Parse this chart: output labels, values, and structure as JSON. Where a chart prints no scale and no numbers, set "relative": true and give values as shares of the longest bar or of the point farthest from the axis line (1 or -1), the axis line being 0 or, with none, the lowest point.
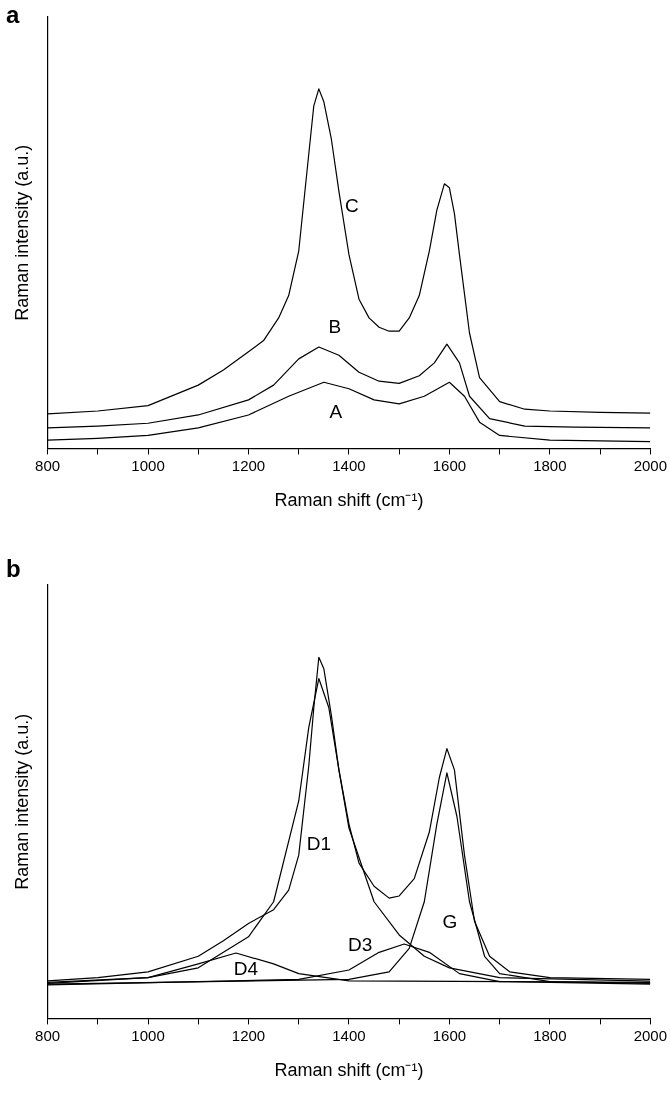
{
  "chart_data": [
    {
      "type": "line",
      "title": "a",
      "xlabel": "Raman shift (cm⁻¹)",
      "ylabel": "Raman intensity (a.u.)",
      "relative": true,
      "xlim": [
        800,
        2000
      ],
      "xticks": [
        800,
        {
          "value": 900,
          "label": null
        },
        1000,
        {
          "value": 1100,
          "label": null
        },
        1200,
        {
          "value": 1300,
          "label": null
        },
        1400,
        {
          "value": 1500,
          "label": null
        },
        1600,
        {
          "value": 1700,
          "label": null
        },
        1800,
        {
          "value": 1900,
          "label": null
        },
        2000
      ],
      "grid": false,
      "legend": false,
      "marker": "none",
      "line_style": "solid",
      "series": [
        {
          "name": "C",
          "color": "#000000",
          "x": [
            800,
            900,
            1000,
            1100,
            1150,
            1200,
            1230,
            1260,
            1280,
            1300,
            1320,
            1330,
            1340,
            1350,
            1365,
            1380,
            1400,
            1420,
            1440,
            1460,
            1480,
            1500,
            1520,
            1540,
            1560,
            1575,
            1590,
            1600,
            1610,
            1620,
            1640,
            1660,
            1700,
            1750,
            1800,
            1900,
            2000
          ],
          "values": [
            0.096,
            0.104,
            0.119,
            0.176,
            0.218,
            0.269,
            0.3,
            0.363,
            0.425,
            0.549,
            0.819,
            0.953,
            1,
            0.964,
            0.86,
            0.715,
            0.539,
            0.415,
            0.363,
            0.337,
            0.326,
            0.326,
            0.363,
            0.425,
            0.549,
            0.663,
            0.736,
            0.725,
            0.653,
            0.539,
            0.321,
            0.197,
            0.13,
            0.109,
            0.104,
            0.1,
            0.098
          ]
        },
        {
          "name": "B",
          "color": "#000000",
          "x": [
            800,
            900,
            1000,
            1100,
            1200,
            1250,
            1300,
            1340,
            1380,
            1420,
            1460,
            1500,
            1540,
            1570,
            1595,
            1620,
            1640,
            1680,
            1750,
            1850,
            2000
          ],
          "values": [
            0.057,
            0.062,
            0.07,
            0.093,
            0.135,
            0.176,
            0.249,
            0.282,
            0.259,
            0.212,
            0.187,
            0.181,
            0.202,
            0.238,
            0.29,
            0.238,
            0.145,
            0.083,
            0.062,
            0.059,
            0.057
          ]
        },
        {
          "name": "A",
          "color": "#000000",
          "x": [
            800,
            900,
            1000,
            1100,
            1200,
            1280,
            1350,
            1400,
            1450,
            1500,
            1550,
            1600,
            1630,
            1660,
            1700,
            1800,
            2000
          ],
          "values": [
            0.023,
            0.028,
            0.036,
            0.057,
            0.093,
            0.145,
            0.184,
            0.166,
            0.135,
            0.124,
            0.145,
            0.184,
            0.145,
            0.073,
            0.036,
            0.023,
            0.019
          ]
        }
      ]
    },
    {
      "type": "line",
      "title": "b",
      "xlabel": "Raman shift (cm⁻¹)",
      "ylabel": "Raman intensity (a.u.)",
      "relative": true,
      "xlim": [
        800,
        2000
      ],
      "xticks": [
        800,
        {
          "value": 900,
          "label": null
        },
        1000,
        {
          "value": 1100,
          "label": null
        },
        1200,
        {
          "value": 1300,
          "label": null
        },
        1400,
        {
          "value": 1500,
          "label": null
        },
        1600,
        {
          "value": 1700,
          "label": null
        },
        1800,
        {
          "value": 1900,
          "label": null
        },
        2000
      ],
      "grid": false,
      "legend": false,
      "marker": "none",
      "line_style": "solid",
      "series": [
        {
          "color": "#000000",
          "x": [
            800,
            900,
            1000,
            1100,
            1150,
            1200,
            1250,
            1280,
            1300,
            1320,
            1330,
            1340,
            1350,
            1365,
            1380,
            1400,
            1420,
            1450,
            1480,
            1500,
            1530,
            1560,
            1580,
            1595,
            1610,
            1630,
            1650,
            1680,
            1720,
            1800,
            2000
          ],
          "values": [
            0.104,
            0.113,
            0.129,
            0.172,
            0.215,
            0.263,
            0.301,
            0.355,
            0.452,
            0.699,
            0.86,
            1,
            0.968,
            0.839,
            0.688,
            0.538,
            0.43,
            0.366,
            0.333,
            0.339,
            0.387,
            0.516,
            0.667,
            0.747,
            0.688,
            0.452,
            0.269,
            0.172,
            0.129,
            0.113,
            0.108
          ]
        },
        {
          "name": "D1",
          "color": "#000000",
          "x": [
            800,
            1000,
            1100,
            1200,
            1250,
            1300,
            1320,
            1340,
            1360,
            1380,
            1400,
            1450,
            1500,
            1550,
            1600,
            1700,
            2000
          ],
          "values": [
            0.097,
            0.113,
            0.14,
            0.226,
            0.323,
            0.602,
            0.806,
            0.941,
            0.86,
            0.688,
            0.527,
            0.323,
            0.231,
            0.172,
            0.14,
            0.113,
            0.103
          ]
        },
        {
          "name": "G",
          "color": "#000000",
          "x": [
            800,
            1400,
            1480,
            1520,
            1550,
            1575,
            1595,
            1615,
            1640,
            1670,
            1700,
            1800,
            2000
          ],
          "values": [
            0.095,
            0.108,
            0.129,
            0.194,
            0.323,
            0.538,
            0.68,
            0.559,
            0.323,
            0.172,
            0.124,
            0.102,
            0.097
          ]
        },
        {
          "name": "D4",
          "color": "#000000",
          "x": [
            800,
            1000,
            1100,
            1175,
            1250,
            1300,
            1400,
            2000
          ],
          "values": [
            0.1,
            0.113,
            0.151,
            0.181,
            0.151,
            0.124,
            0.104,
            0.1
          ]
        },
        {
          "name": "D3",
          "color": "#000000",
          "x": [
            800,
            1300,
            1400,
            1460,
            1510,
            1560,
            1620,
            1700,
            2000
          ],
          "values": [
            0.093,
            0.108,
            0.134,
            0.183,
            0.206,
            0.183,
            0.124,
            0.102,
            0.095
          ]
        }
      ]
    }
  ]
}
